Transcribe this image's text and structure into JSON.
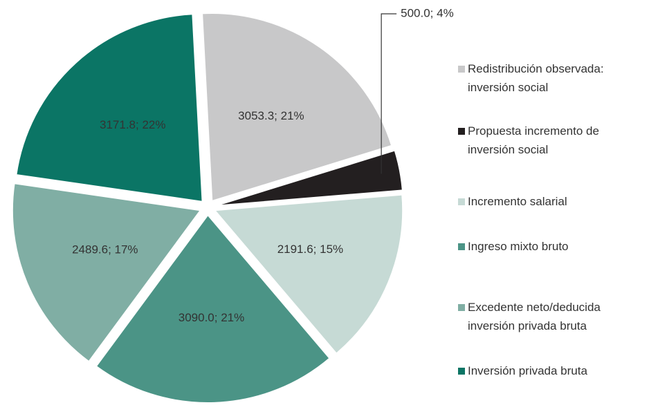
{
  "chart_data": {
    "type": "pie",
    "categories": [
      "Redistribución observada: inversión social",
      "Propuesta incremento de inversión social",
      "Incremento salarial",
      "Ingreso mixto bruto",
      "Excedente neto/deducida inversión privada bruta",
      "Inversión privada bruta"
    ],
    "values": [
      3053.3,
      500.0,
      2191.6,
      3090.0,
      2489.6,
      3171.8
    ],
    "value_labels": [
      "3053.3; 21%",
      "500.0; 4%",
      "2191.6; 15%",
      "3090.0; 21%",
      "2489.6; 17%",
      "3171.8; 22%"
    ],
    "colors": [
      "#c8c8c9",
      "#231f20",
      "#c6dad5",
      "#4b9486",
      "#80aea4",
      "#0b7565"
    ],
    "legend": "right"
  }
}
